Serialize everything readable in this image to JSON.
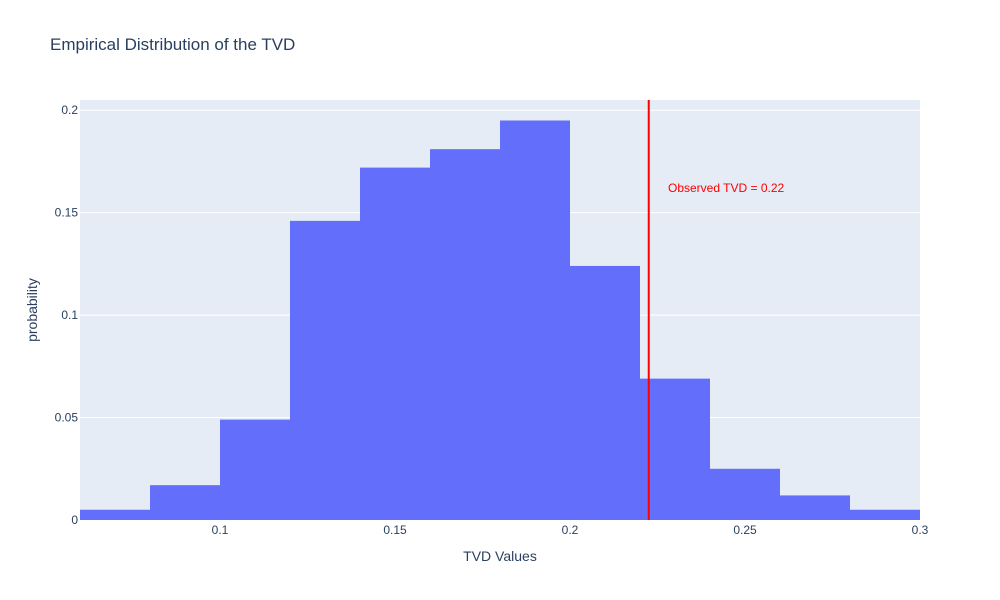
{
  "chart_data": {
    "type": "bar",
    "title": "Empirical Distribution of the TVD",
    "xlabel": "TVD Values",
    "ylabel": "probability",
    "bin_width": 0.02,
    "bins": [
      {
        "x0": 0.06,
        "x1": 0.08,
        "y": 0.005
      },
      {
        "x0": 0.08,
        "x1": 0.1,
        "y": 0.017
      },
      {
        "x0": 0.1,
        "x1": 0.12,
        "y": 0.049
      },
      {
        "x0": 0.12,
        "x1": 0.14,
        "y": 0.146
      },
      {
        "x0": 0.14,
        "x1": 0.16,
        "y": 0.172
      },
      {
        "x0": 0.16,
        "x1": 0.18,
        "y": 0.181
      },
      {
        "x0": 0.18,
        "x1": 0.2,
        "y": 0.195
      },
      {
        "x0": 0.2,
        "x1": 0.22,
        "y": 0.124
      },
      {
        "x0": 0.22,
        "x1": 0.24,
        "y": 0.069
      },
      {
        "x0": 0.24,
        "x1": 0.26,
        "y": 0.025
      },
      {
        "x0": 0.26,
        "x1": 0.28,
        "y": 0.012
      },
      {
        "x0": 0.28,
        "x1": 0.3,
        "y": 0.005
      }
    ],
    "xlim": [
      0.06,
      0.3
    ],
    "ylim": [
      0,
      0.205
    ],
    "xticks": [
      {
        "value": 0.1,
        "label": "0.1"
      },
      {
        "value": 0.15,
        "label": "0.15"
      },
      {
        "value": 0.2,
        "label": "0.2"
      },
      {
        "value": 0.25,
        "label": "0.25"
      },
      {
        "value": 0.3,
        "label": "0.3"
      }
    ],
    "yticks": [
      {
        "value": 0,
        "label": "0"
      },
      {
        "value": 0.05,
        "label": "0.05"
      },
      {
        "value": 0.1,
        "label": "0.1"
      },
      {
        "value": 0.15,
        "label": "0.15"
      },
      {
        "value": 0.2,
        "label": "0.2"
      }
    ],
    "grid": true,
    "legend": "none",
    "reference_line": {
      "x": 0.2225,
      "color": "#ff0000"
    },
    "annotation": {
      "text": "Observed TVD = 0.22",
      "x": 0.228,
      "y": 0.16,
      "color": "#ff0000"
    },
    "colors": {
      "bar": "#636efa",
      "plot_bg": "#e5ecf6",
      "grid": "#ffffff",
      "text": "#2a3f5f"
    }
  }
}
